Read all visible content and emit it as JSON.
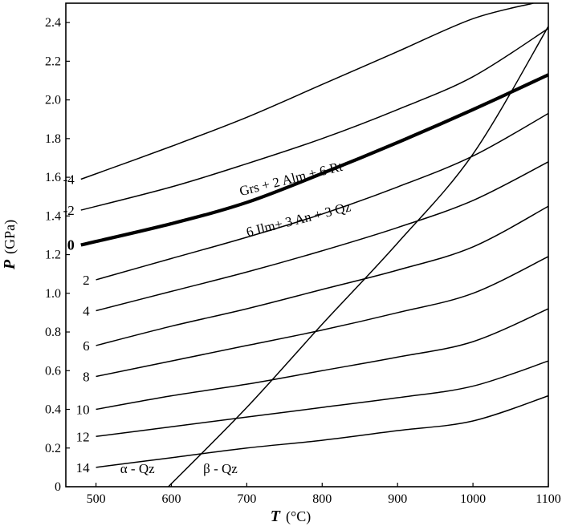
{
  "chart_data": {
    "type": "line",
    "title": "",
    "xlabel_var": "T",
    "xlabel_unit": "(°C)",
    "ylabel_var": "P",
    "ylabel_unit": "(GPa)",
    "xlim": [
      460,
      1100
    ],
    "ylim": [
      0,
      2.5
    ],
    "xticks": [
      500,
      600,
      700,
      800,
      900,
      1000,
      1100
    ],
    "yticks": [
      0,
      0.2,
      0.4,
      0.6,
      0.8,
      1.0,
      1.2,
      1.4,
      1.6,
      1.8,
      2.0,
      2.2,
      2.4
    ],
    "ytick_labels": [
      "0",
      "0.2",
      "0.4",
      "0.6",
      "0.8",
      "1.0",
      "1.2",
      "1.4",
      "1.6",
      "1.8",
      "2.0",
      "2.2",
      "2.4"
    ],
    "grid": false,
    "series": [
      {
        "name": "-4",
        "x": [
          480,
          600,
          700,
          800,
          900,
          1000,
          1080
        ],
        "y": [
          1.59,
          1.76,
          1.91,
          2.08,
          2.25,
          2.42,
          2.5
        ]
      },
      {
        "name": "-2",
        "x": [
          480,
          600,
          700,
          800,
          900,
          1000,
          1100
        ],
        "y": [
          1.43,
          1.55,
          1.67,
          1.8,
          1.95,
          2.12,
          2.37
        ]
      },
      {
        "name": "0",
        "bold": true,
        "x": [
          480,
          600,
          700,
          800,
          900,
          1000,
          1100
        ],
        "y": [
          1.25,
          1.36,
          1.47,
          1.62,
          1.78,
          1.95,
          2.13
        ]
      },
      {
        "name": "2",
        "x": [
          500,
          600,
          700,
          800,
          900,
          1000,
          1100
        ],
        "y": [
          1.07,
          1.18,
          1.29,
          1.41,
          1.55,
          1.71,
          1.93
        ]
      },
      {
        "name": "4",
        "x": [
          500,
          600,
          700,
          800,
          900,
          1000,
          1100
        ],
        "y": [
          0.91,
          1.01,
          1.11,
          1.22,
          1.34,
          1.48,
          1.68
        ]
      },
      {
        "name": "6",
        "x": [
          500,
          600,
          700,
          800,
          900,
          1000,
          1100
        ],
        "y": [
          0.73,
          0.83,
          0.92,
          1.02,
          1.12,
          1.24,
          1.45
        ]
      },
      {
        "name": "8",
        "x": [
          500,
          600,
          700,
          800,
          900,
          1000,
          1100
        ],
        "y": [
          0.57,
          0.65,
          0.73,
          0.81,
          0.9,
          1.0,
          1.19
        ]
      },
      {
        "name": "10",
        "x": [
          500,
          600,
          700,
          800,
          900,
          1000,
          1100
        ],
        "y": [
          0.4,
          0.47,
          0.53,
          0.6,
          0.67,
          0.75,
          0.92
        ]
      },
      {
        "name": "12",
        "x": [
          500,
          600,
          700,
          800,
          900,
          1000,
          1100
        ],
        "y": [
          0.26,
          0.31,
          0.36,
          0.41,
          0.46,
          0.52,
          0.65
        ]
      },
      {
        "name": "14",
        "x": [
          500,
          600,
          700,
          800,
          900,
          1000,
          1100
        ],
        "y": [
          0.1,
          0.15,
          0.2,
          0.24,
          0.29,
          0.34,
          0.47
        ]
      },
      {
        "name": "qz",
        "x": [
          596,
          700,
          800,
          900,
          1000,
          1100
        ],
        "y": [
          0.0,
          0.41,
          0.84,
          1.26,
          1.72,
          2.38
        ]
      }
    ],
    "annotations": [
      {
        "text": "Grs + 2 Alm + 6 Rt",
        "x": 760,
        "y": 1.57,
        "angle": -14
      },
      {
        "text": "6 Ilm+ 3 An + 3 Qz",
        "x": 770,
        "y": 1.36,
        "angle": -14
      },
      {
        "text": "α - Qz",
        "x": 555,
        "y": 0.07,
        "angle": 0
      },
      {
        "text": "β - Qz",
        "x": 665,
        "y": 0.07,
        "angle": 0
      }
    ]
  }
}
